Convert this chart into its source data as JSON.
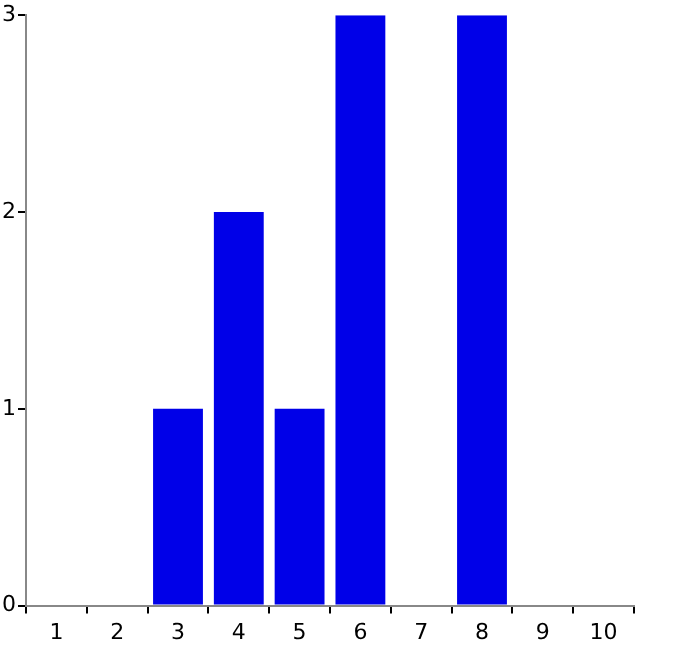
{
  "chart_data": {
    "type": "bar",
    "categories": [
      "1",
      "2",
      "3",
      "4",
      "5",
      "6",
      "7",
      "8",
      "9",
      "10"
    ],
    "values": [
      0,
      0,
      1,
      2,
      1,
      3,
      0,
      3,
      0,
      0
    ],
    "color": "#0000e8",
    "ylim": [
      0,
      3
    ],
    "yticks": [
      0,
      1,
      2,
      3
    ],
    "grid": false,
    "legend": false
  }
}
